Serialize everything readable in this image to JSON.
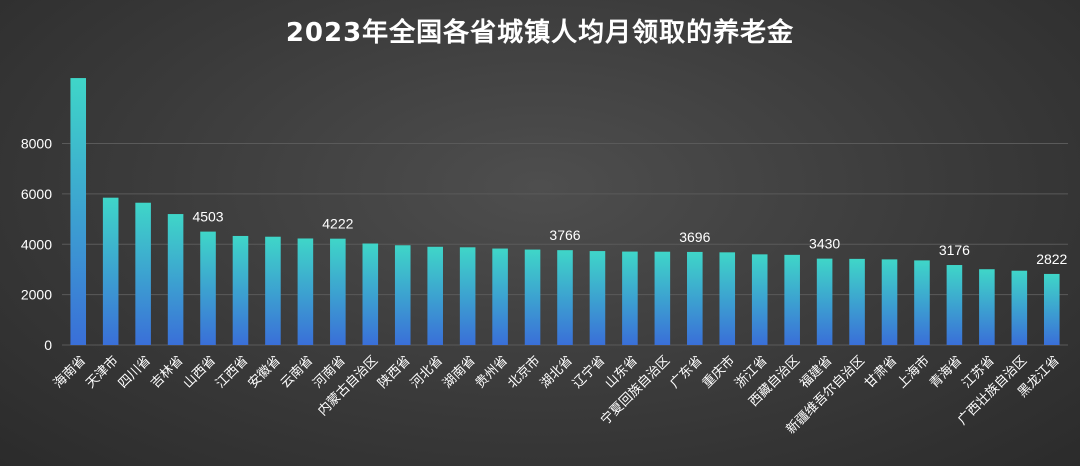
{
  "chart_data": {
    "type": "bar",
    "title": "2023年全国各省城镇人均月领取的养老金",
    "xlabel": "",
    "ylabel": "",
    "ylim": [
      0,
      11000
    ],
    "yticks": [
      0,
      2000,
      4000,
      6000,
      8000
    ],
    "grid": true,
    "legend": "none",
    "categories": [
      "海南省",
      "天津市",
      "四川省",
      "吉林省",
      "山西省",
      "江西省",
      "安徽省",
      "云南省",
      "河南省",
      "内蒙古自治区",
      "陕西省",
      "河北省",
      "湖南省",
      "贵州省",
      "北京市",
      "湖北省",
      "辽宁省",
      "山东省",
      "宁夏回族自治区",
      "广东省",
      "重庆市",
      "浙江省",
      "西藏自治区",
      "福建省",
      "新疆维吾尔自治区",
      "甘肃省",
      "上海市",
      "青海省",
      "江苏省",
      "广西壮族自治区",
      "黑龙江省"
    ],
    "values": [
      10600,
      5850,
      5650,
      5200,
      4503,
      4330,
      4300,
      4230,
      4222,
      4030,
      3960,
      3900,
      3880,
      3830,
      3790,
      3766,
      3730,
      3710,
      3705,
      3696,
      3680,
      3600,
      3580,
      3430,
      3420,
      3400,
      3360,
      3176,
      3010,
      2950,
      2822
    ],
    "labeled_values": [
      {
        "index": 4,
        "text": "4503"
      },
      {
        "index": 8,
        "text": "4222"
      },
      {
        "index": 15,
        "text": "3766"
      },
      {
        "index": 19,
        "text": "3696"
      },
      {
        "index": 23,
        "text": "3430"
      },
      {
        "index": 27,
        "text": "3176"
      },
      {
        "index": 30,
        "text": "2822"
      }
    ],
    "colors": {
      "bar_top": "#3fd6c8",
      "bar_bottom": "#3a6fd8",
      "text": "#ffffff",
      "grid": "#5a5a5a"
    }
  }
}
